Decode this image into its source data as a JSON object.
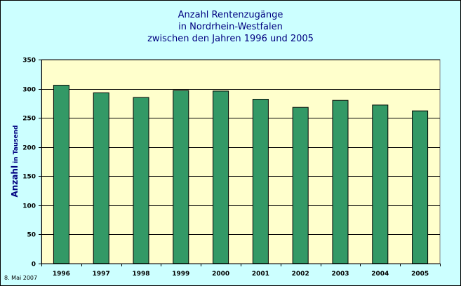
{
  "chart_data": {
    "type": "bar",
    "title": [
      "Anzahl Rentenzugänge",
      "in Nordrhein-Westfalen",
      "zwischen den Jahren 1996 und 2005"
    ],
    "ylabel_main": "Anzahl",
    "ylabel_sub": "in Tausend",
    "xlabel": "",
    "categories": [
      "1996",
      "1997",
      "1998",
      "1999",
      "2000",
      "2001",
      "2002",
      "2003",
      "2004",
      "2005"
    ],
    "values": [
      306,
      293,
      285,
      297,
      296,
      282,
      268,
      280,
      272,
      262
    ],
    "ylim": [
      0,
      350
    ],
    "yticks": [
      "0",
      "50",
      "100",
      "150",
      "200",
      "250",
      "300",
      "350"
    ],
    "grid": true,
    "legend": "none",
    "colors": {
      "bar": "#339966",
      "plot_bg": "#ffffcc",
      "chart_bg": "#ccffff",
      "title": "#000080",
      "grid": "#000000"
    }
  },
  "footer": {
    "date": "8. Mai 2007"
  }
}
